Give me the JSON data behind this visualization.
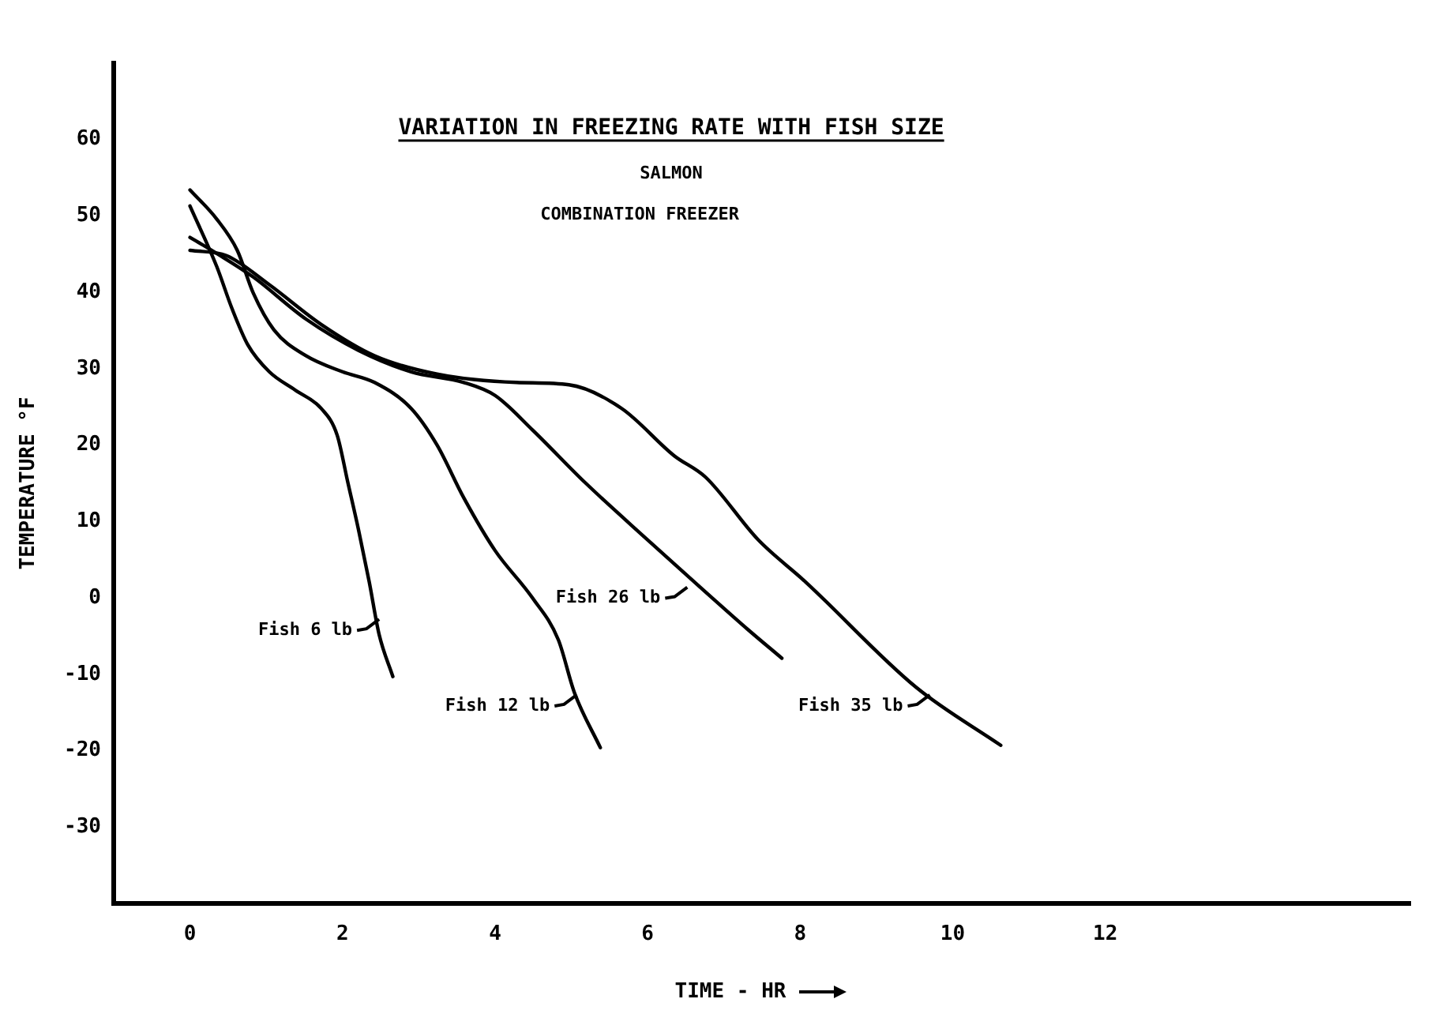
{
  "chart_data": {
    "type": "line",
    "title": "VARIATION IN FREEZING RATE WITH FISH SIZE",
    "subtitle": "SALMON",
    "xlabel": "TIME - HR",
    "ylabel": "TEMPERATURE °F",
    "xlim": [
      -1,
      16
    ],
    "xticks": [
      0,
      2,
      4,
      6,
      8,
      10,
      12
    ],
    "ylim": [
      -40,
      70
    ],
    "yticks": [
      -30,
      -20,
      -10,
      0,
      10,
      20,
      30,
      40,
      50,
      60
    ],
    "grid": false,
    "legend": false,
    "series": [
      {
        "color": "#000000",
        "x": [
          0,
          0.35,
          0.55,
          0.76,
          1.04,
          1.38,
          1.72,
          1.93,
          2.07,
          2.21,
          2.35,
          2.48,
          2.66
        ],
        "values": [
          51.3,
          43.4,
          37.9,
          33.1,
          29.6,
          27.2,
          24.8,
          21.3,
          15.1,
          8.9,
          2.1,
          -4.8,
          -10.3
        ]
      },
      {
        "color": "#000000",
        "x": [
          0,
          0.35,
          0.62,
          0.83,
          1.1,
          1.52,
          2.0,
          2.42,
          2.9,
          3.24,
          3.59,
          4.0,
          4.49,
          4.83,
          5.04,
          5.38
        ],
        "values": [
          53.4,
          49.6,
          45.5,
          39.9,
          35.1,
          31.7,
          29.6,
          28.2,
          24.8,
          20.0,
          13.1,
          6.2,
          0,
          -5.5,
          -12.4,
          -19.6
        ]
      },
      {
        "color": "#000000",
        "x": [
          0,
          0.35,
          0.83,
          1.52,
          2.21,
          2.9,
          3.59,
          4.0,
          4.49,
          5.18,
          6.0,
          6.69,
          7.31,
          7.76
        ],
        "values": [
          47.2,
          45.1,
          42.0,
          36.5,
          32.4,
          29.6,
          28.2,
          26.5,
          22.0,
          15.1,
          7.6,
          1.4,
          -4.1,
          -7.9
        ]
      },
      {
        "color": "#000000",
        "x": [
          0,
          0.48,
          1.04,
          1.72,
          2.42,
          3.24,
          4.28,
          4.97,
          5.66,
          6.35,
          6.76,
          7.45,
          8.07,
          9.52,
          10.63
        ],
        "values": [
          45.5,
          44.8,
          41.0,
          35.8,
          31.7,
          29.3,
          28.2,
          27.9,
          24.8,
          18.6,
          15.8,
          7.6,
          2.1,
          -11.7,
          -19.3
        ]
      }
    ],
    "annotations": [
      "COMBINATION FREEZER",
      {
        "text": "Fish 6 lb",
        "x": 2.48,
        "y": -2.8
      },
      {
        "text": "Fish 12 lb",
        "x": 5.07,
        "y": -12.7
      },
      {
        "text": "Fish 26 lb",
        "x": 6.52,
        "y": 1.4
      },
      {
        "text": "Fish 35 lb",
        "x": 9.7,
        "y": -12.7
      }
    ]
  }
}
